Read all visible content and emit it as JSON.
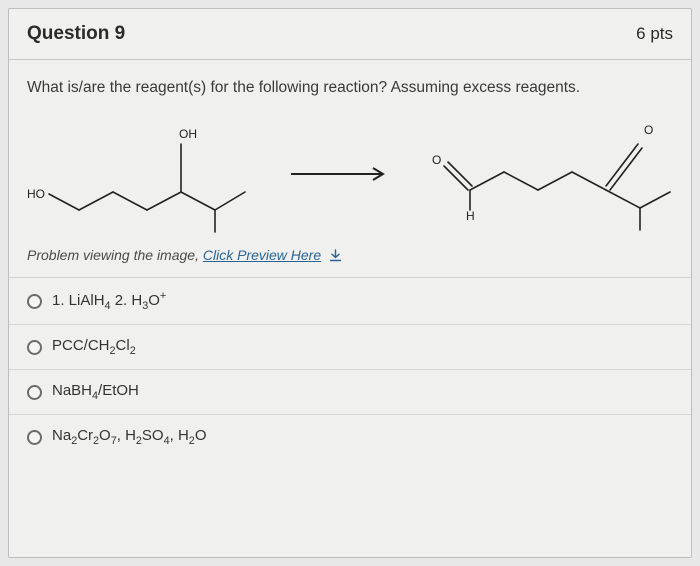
{
  "header": {
    "title": "Question 9",
    "points": "6 pts"
  },
  "prompt": "What is/are the reagent(s) for the following reaction? Assuming excess reagents.",
  "figure": {
    "left_labels": {
      "HO": "HO",
      "OH": "OH"
    },
    "right_labels": {
      "O_top": "O",
      "O_dbl": "O",
      "H": "H"
    },
    "stroke": "#222222",
    "stroke_width": 1.6,
    "arrow_color": "#222222"
  },
  "preview": {
    "prefix": "Problem viewing the image, ",
    "link": "Click Preview Here"
  },
  "options": [
    {
      "html": "1. LiAlH<span class='sub'>4</span> 2. H<span class='sub'>3</span>O<span class='sup'>+</span>"
    },
    {
      "html": "PCC/CH<span class='sub'>2</span>Cl<span class='sub'>2</span>"
    },
    {
      "html": "NaBH<span class='sub'>4</span>/EtOH"
    },
    {
      "html": "Na<span class='sub'>2</span>Cr<span class='sub'>2</span>O<span class='sub'>7</span>, H<span class='sub'>2</span>SO<span class='sub'>4</span>, H<span class='sub'>2</span>O"
    }
  ]
}
